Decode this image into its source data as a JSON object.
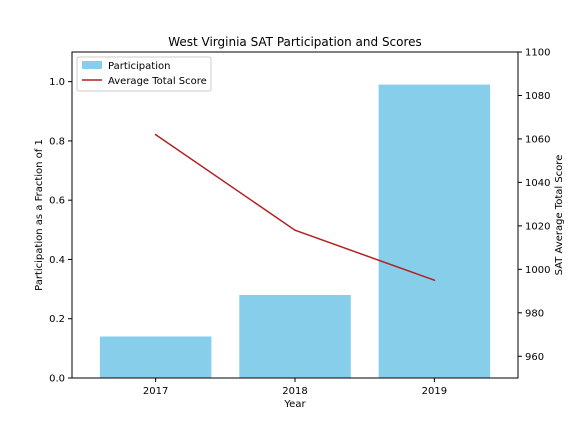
{
  "chart_data": {
    "type": "bar",
    "title": "West Virginia SAT Participation and Scores",
    "xlabel": "Year",
    "ylabel": "Participation as a Fraction of 1",
    "y2label": "SAT Average Total Score",
    "categories": [
      "2017",
      "2018",
      "2019"
    ],
    "ylim": [
      0,
      1.1
    ],
    "y2lim": [
      950,
      1100
    ],
    "yticks": [
      "0.0",
      "0.2",
      "0.4",
      "0.6",
      "0.8",
      "1.0"
    ],
    "y2ticks": [
      "960",
      "980",
      "1000",
      "1020",
      "1040",
      "1060",
      "1080",
      "1100"
    ],
    "legend_position": "top-left",
    "series": [
      {
        "name": "Participation",
        "kind": "bar",
        "axis": "left",
        "color": "#87ceeb",
        "values": [
          0.14,
          0.28,
          0.99
        ]
      },
      {
        "name": "Average Total Score",
        "kind": "line",
        "axis": "right",
        "color": "#b22222",
        "values": [
          1062,
          1018,
          995
        ]
      }
    ]
  }
}
